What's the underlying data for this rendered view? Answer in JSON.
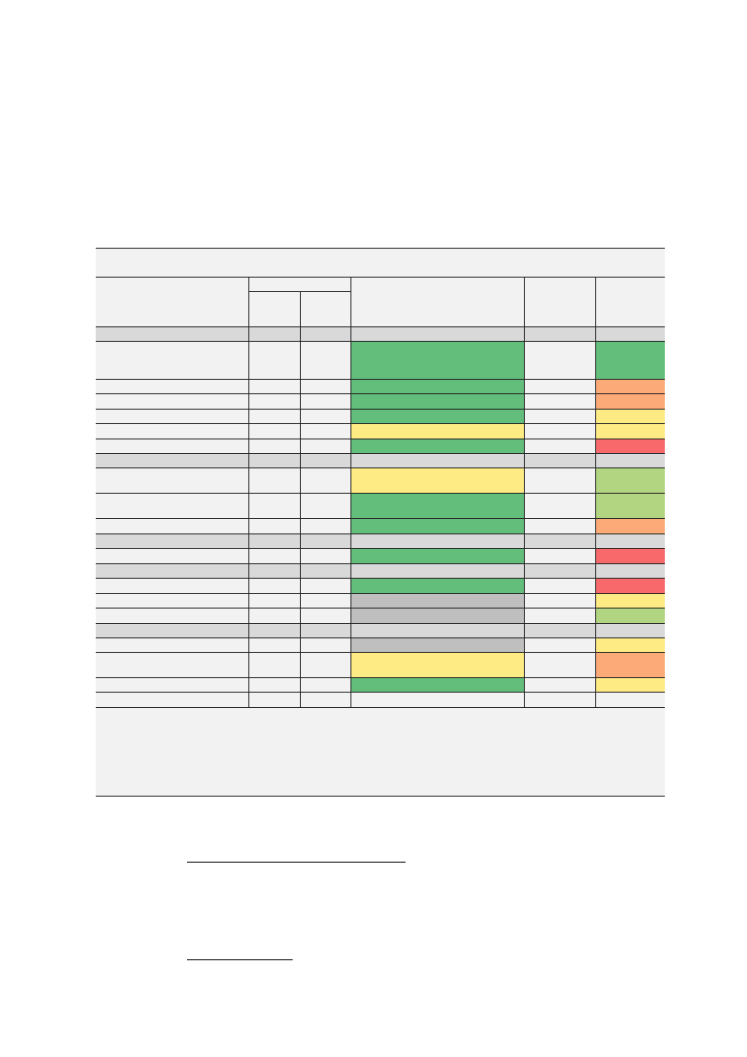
{
  "table": {
    "title_fill": "#f2f2f2",
    "header_fill": "#f2f2f2",
    "footer_fill": "#f2f2f2",
    "rows": [
      [
        "#d9d9d9",
        "#d9d9d9",
        "#d9d9d9",
        "#d9d9d9",
        "#d9d9d9",
        "#d9d9d9"
      ],
      [
        "#f2f2f2",
        "#f2f2f2",
        "#f2f2f2",
        "#63be7b",
        "#f2f2f2",
        "#63be7b"
      ],
      [
        "#f2f2f2",
        "#f2f2f2",
        "#f2f2f2",
        "#63be7b",
        "#f2f2f2",
        "#fcaa78"
      ],
      [
        "#f2f2f2",
        "#f2f2f2",
        "#f2f2f2",
        "#63be7b",
        "#f2f2f2",
        "#fcaa78"
      ],
      [
        "#f2f2f2",
        "#f2f2f2",
        "#f2f2f2",
        "#63be7b",
        "#f2f2f2",
        "#ffeb84"
      ],
      [
        "#f2f2f2",
        "#f2f2f2",
        "#f2f2f2",
        "#ffeb84",
        "#f2f2f2",
        "#ffeb84"
      ],
      [
        "#f2f2f2",
        "#f2f2f2",
        "#f2f2f2",
        "#63be7b",
        "#f2f2f2",
        "#f8696b"
      ],
      [
        "#d9d9d9",
        "#d9d9d9",
        "#d9d9d9",
        "#d9d9d9",
        "#d9d9d9",
        "#d9d9d9"
      ],
      [
        "#f2f2f2",
        "#f2f2f2",
        "#f2f2f2",
        "#ffeb84",
        "#f2f2f2",
        "#b1d580"
      ],
      [
        "#f2f2f2",
        "#f2f2f2",
        "#f2f2f2",
        "#63be7b",
        "#f2f2f2",
        "#b1d580"
      ],
      [
        "#f2f2f2",
        "#f2f2f2",
        "#f2f2f2",
        "#63be7b",
        "#f2f2f2",
        "#fcaa78"
      ],
      [
        "#d9d9d9",
        "#d9d9d9",
        "#d9d9d9",
        "#d9d9d9",
        "#d9d9d9",
        "#d9d9d9"
      ],
      [
        "#f2f2f2",
        "#f2f2f2",
        "#f2f2f2",
        "#63be7b",
        "#f2f2f2",
        "#f8696b"
      ],
      [
        "#d9d9d9",
        "#d9d9d9",
        "#d9d9d9",
        "#d9d9d9",
        "#d9d9d9",
        "#d9d9d9"
      ],
      [
        "#f2f2f2",
        "#f2f2f2",
        "#f2f2f2",
        "#63be7b",
        "#f2f2f2",
        "#f8696b"
      ],
      [
        "#f2f2f2",
        "#f2f2f2",
        "#f2f2f2",
        "#bfbfbf",
        "#f2f2f2",
        "#ffeb84"
      ],
      [
        "#f2f2f2",
        "#f2f2f2",
        "#f2f2f2",
        "#bfbfbf",
        "#f2f2f2",
        "#b1d580"
      ],
      [
        "#d9d9d9",
        "#d9d9d9",
        "#d9d9d9",
        "#d9d9d9",
        "#d9d9d9",
        "#d9d9d9"
      ],
      [
        "#f2f2f2",
        "#f2f2f2",
        "#f2f2f2",
        "#bfbfbf",
        "#f2f2f2",
        "#ffeb84"
      ],
      [
        "#f2f2f2",
        "#f2f2f2",
        "#f2f2f2",
        "#ffeb84",
        "#f2f2f2",
        "#fcaa78"
      ],
      [
        "#f2f2f2",
        "#f2f2f2",
        "#f2f2f2",
        "#63be7b",
        "#f2f2f2",
        "#ffeb84"
      ],
      [
        "#f2f2f2",
        "#f2f2f2",
        "#f2f2f2",
        "#f2f2f2",
        "#f2f2f2",
        "#f2f2f2"
      ]
    ]
  }
}
